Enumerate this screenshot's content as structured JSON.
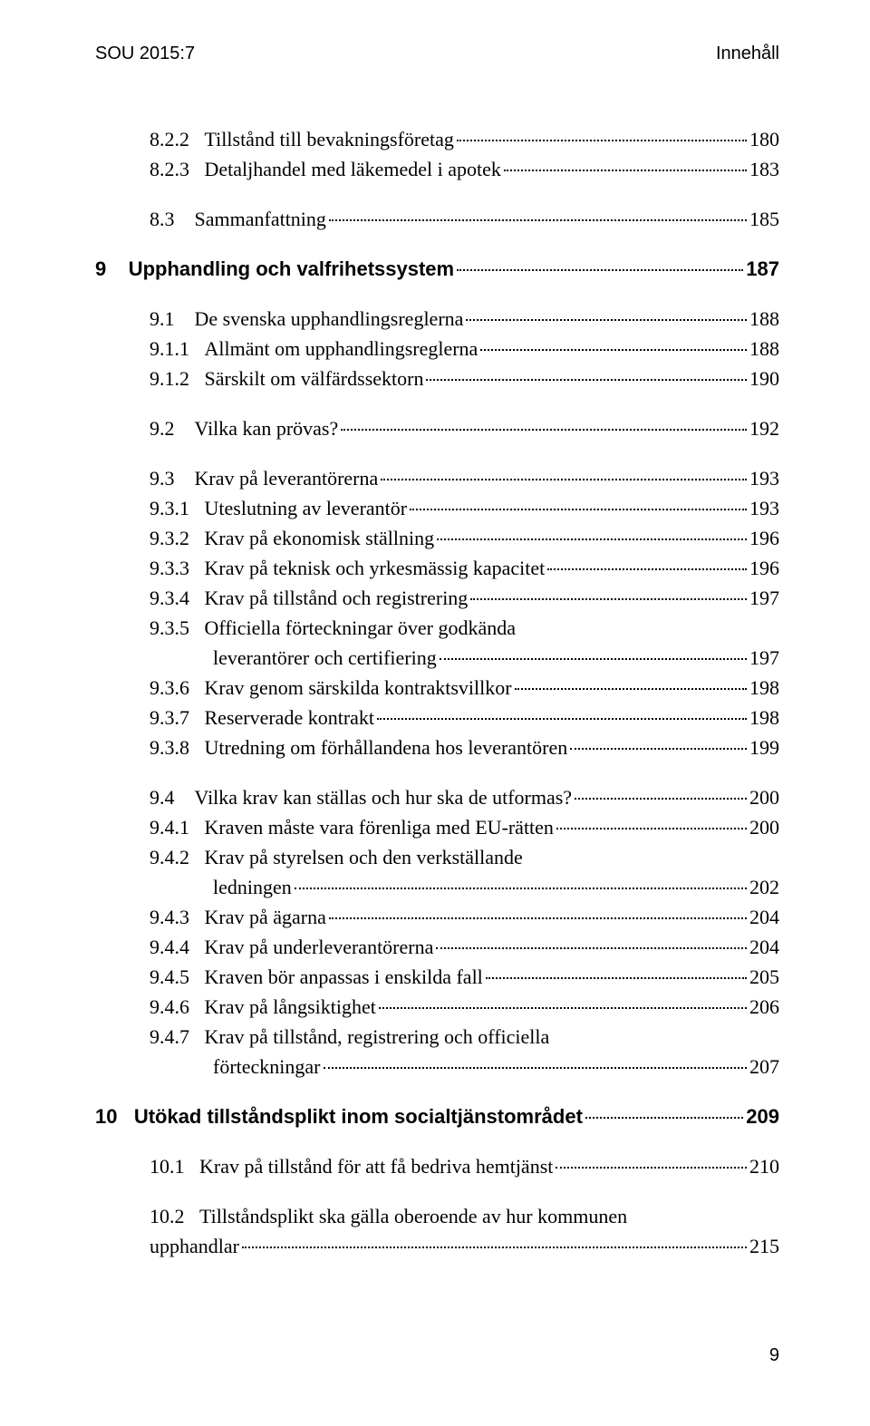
{
  "colors": {
    "text": "#000000",
    "background": "#ffffff",
    "leader": "#000000"
  },
  "typography": {
    "body_font": "Georgia, 'Times New Roman', serif",
    "head_font": "Arial, Helvetica, sans-serif",
    "body_fontsize_pt": 16,
    "head_fontsize_pt": 15
  },
  "header": {
    "left": "SOU 2015:7",
    "right": "Innehåll"
  },
  "page_number": "9",
  "toc": [
    {
      "indent": 2,
      "num": "8.2.2",
      "label": "Tillstånd till bevakningsföretag",
      "page": "180",
      "bold": false,
      "gap": false
    },
    {
      "indent": 2,
      "num": "8.2.3",
      "label": "Detaljhandel med läkemedel i apotek",
      "page": "183",
      "bold": false,
      "gap": false
    },
    {
      "indent": 1,
      "num": "8.3",
      "label": "Sammanfattning",
      "page": "185",
      "bold": false,
      "gap": true
    },
    {
      "indent": 0,
      "num": "9",
      "label": "Upphandling och valfrihetssystem",
      "page": " 187",
      "bold": true,
      "gap": true
    },
    {
      "indent": 1,
      "num": "9.1",
      "label": "De svenska upphandlingsreglerna",
      "page": "188",
      "bold": false,
      "gap": true
    },
    {
      "indent": 2,
      "num": "9.1.1",
      "label": "Allmänt om upphandlingsreglerna",
      "page": "188",
      "bold": false,
      "gap": false
    },
    {
      "indent": 2,
      "num": "9.1.2",
      "label": "Särskilt om välfärdssektorn",
      "page": "190",
      "bold": false,
      "gap": false
    },
    {
      "indent": 1,
      "num": "9.2",
      "label": "Vilka kan prövas?",
      "page": "192",
      "bold": false,
      "gap": true
    },
    {
      "indent": 1,
      "num": "9.3",
      "label": "Krav på leverantörerna",
      "page": "193",
      "bold": false,
      "gap": true
    },
    {
      "indent": 2,
      "num": "9.3.1",
      "label": "Uteslutning av leverantör",
      "page": "193",
      "bold": false,
      "gap": false
    },
    {
      "indent": 2,
      "num": "9.3.2",
      "label": "Krav på ekonomisk ställning",
      "page": "196",
      "bold": false,
      "gap": false
    },
    {
      "indent": 2,
      "num": "9.3.3",
      "label": "Krav på teknisk och yrkesmässig kapacitet",
      "page": "196",
      "bold": false,
      "gap": false
    },
    {
      "indent": 2,
      "num": "9.3.4",
      "label": "Krav på tillstånd och registrering",
      "page": "197",
      "bold": false,
      "gap": false
    },
    {
      "indent": 2,
      "num": "9.3.5",
      "label": "Officiella förteckningar över godkända",
      "cont": "leverantörer och certifiering",
      "page": "197",
      "bold": false,
      "gap": false
    },
    {
      "indent": 2,
      "num": "9.3.6",
      "label": "Krav genom särskilda kontraktsvillkor",
      "page": "198",
      "bold": false,
      "gap": false
    },
    {
      "indent": 2,
      "num": "9.3.7",
      "label": "Reserverade kontrakt",
      "page": "198",
      "bold": false,
      "gap": false
    },
    {
      "indent": 2,
      "num": "9.3.8",
      "label": "Utredning om förhållandena hos leverantören",
      "page": "199",
      "bold": false,
      "gap": false
    },
    {
      "indent": 1,
      "num": "9.4",
      "label": "Vilka krav kan ställas och hur ska de utformas?",
      "page": "200",
      "bold": false,
      "gap": true
    },
    {
      "indent": 2,
      "num": "9.4.1",
      "label": "Kraven måste vara förenliga med EU-rätten",
      "page": "200",
      "bold": false,
      "gap": false
    },
    {
      "indent": 2,
      "num": "9.4.2",
      "label": "Krav på styrelsen och den verkställande",
      "cont": "ledningen",
      "page": "202",
      "bold": false,
      "gap": false
    },
    {
      "indent": 2,
      "num": "9.4.3",
      "label": "Krav på ägarna",
      "page": "204",
      "bold": false,
      "gap": false
    },
    {
      "indent": 2,
      "num": "9.4.4",
      "label": "Krav på underleverantörerna",
      "page": "204",
      "bold": false,
      "gap": false
    },
    {
      "indent": 2,
      "num": "9.4.5",
      "label": "Kraven bör anpassas i enskilda fall",
      "page": "205",
      "bold": false,
      "gap": false
    },
    {
      "indent": 2,
      "num": "9.4.6",
      "label": "Krav på långsiktighet",
      "page": "206",
      "bold": false,
      "gap": false
    },
    {
      "indent": 2,
      "num": "9.4.7",
      "label": "Krav på tillstånd, registrering och officiella",
      "cont": "förteckningar",
      "page": "207",
      "bold": false,
      "gap": false
    },
    {
      "indent": 0,
      "num": "10",
      "label": "Utökad tillståndsplikt inom socialtjänstområdet",
      "page": " 209",
      "bold": true,
      "gap": true
    },
    {
      "indent": 1,
      "num": "10.1",
      "label": "Krav på tillstånd för att få bedriva hemtjänst",
      "page": "210",
      "bold": false,
      "gap": true
    },
    {
      "indent": 1,
      "num": "10.2",
      "label": "Tillståndsplikt ska gälla oberoende av hur kommunen",
      "cont": "upphandlar",
      "cont_indent": 1,
      "page": "215",
      "bold": false,
      "gap": true
    }
  ]
}
